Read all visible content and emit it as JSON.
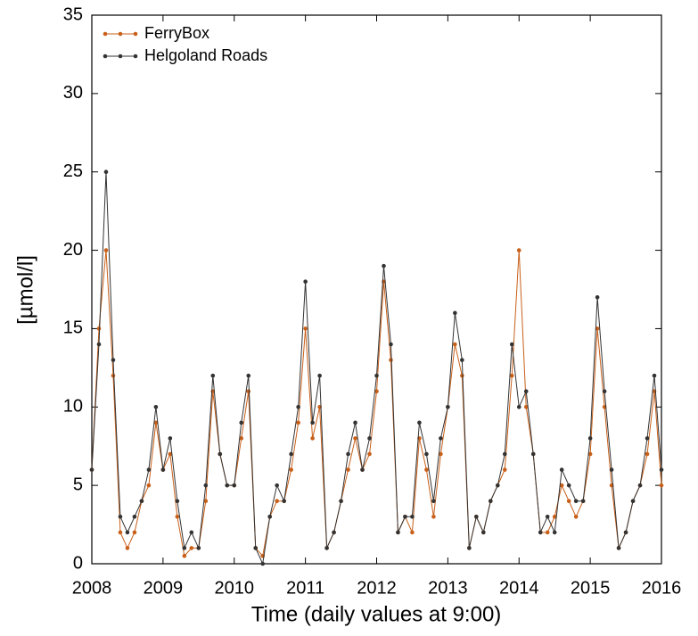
{
  "chart_data": {
    "type": "line",
    "y_label": "[µmol/l]",
    "x_label": "Time (daily values at 9:00)",
    "x": [
      2008.0,
      2008.1,
      2008.2,
      2008.3,
      2008.4,
      2008.5,
      2008.6,
      2008.7,
      2008.8,
      2008.9,
      2009.0,
      2009.1,
      2009.2,
      2009.3,
      2009.4,
      2009.5,
      2009.6,
      2009.7,
      2009.8,
      2009.9,
      2010.0,
      2010.1,
      2010.2,
      2010.3,
      2010.4,
      2010.5,
      2010.6,
      2010.7,
      2010.8,
      2010.9,
      2011.0,
      2011.1,
      2011.2,
      2011.3,
      2011.4,
      2011.5,
      2011.6,
      2011.7,
      2011.8,
      2011.9,
      2012.0,
      2012.1,
      2012.2,
      2012.3,
      2012.4,
      2012.5,
      2012.6,
      2012.7,
      2012.8,
      2012.9,
      2013.0,
      2013.1,
      2013.2,
      2013.3,
      2013.4,
      2013.5,
      2013.6,
      2013.7,
      2013.8,
      2013.9,
      2014.0,
      2014.1,
      2014.2,
      2014.3,
      2014.4,
      2014.5,
      2014.6,
      2014.7,
      2014.8,
      2014.9,
      2015.0,
      2015.1,
      2015.2,
      2015.3,
      2015.4,
      2015.5,
      2015.6,
      2015.7,
      2015.8,
      2015.9,
      2016.0
    ],
    "series": [
      {
        "name": "FerryBox",
        "color": "#c8601a",
        "values": [
          6,
          15,
          20,
          12,
          2,
          1,
          2,
          4,
          5,
          9,
          6,
          7,
          3,
          0.5,
          1,
          1,
          4,
          11,
          7,
          5,
          5,
          8,
          11,
          1,
          0.5,
          3,
          4,
          4,
          6,
          9,
          15,
          8,
          10,
          1,
          2,
          4,
          6,
          8,
          6,
          7,
          11,
          18,
          13,
          2,
          3,
          2,
          8,
          6,
          3,
          7,
          10,
          14,
          12,
          1,
          3,
          2,
          4,
          5,
          6,
          12,
          20,
          10,
          7,
          2,
          2,
          3,
          5,
          4,
          3,
          4,
          7,
          15,
          10,
          5,
          1,
          2,
          4,
          5,
          7,
          11,
          5
        ]
      },
      {
        "name": "Helgoland Roads",
        "color": "#333333",
        "values": [
          6,
          14,
          25,
          13,
          3,
          2,
          3,
          4,
          6,
          10,
          6,
          8,
          4,
          1,
          2,
          1,
          5,
          12,
          7,
          5,
          5,
          9,
          12,
          1,
          0,
          3,
          5,
          4,
          7,
          10,
          18,
          9,
          12,
          1,
          2,
          4,
          7,
          9,
          6,
          8,
          12,
          19,
          14,
          2,
          3,
          3,
          9,
          7,
          4,
          8,
          10,
          16,
          13,
          1,
          3,
          2,
          4,
          5,
          7,
          14,
          10,
          11,
          7,
          2,
          3,
          2,
          6,
          5,
          4,
          4,
          8,
          17,
          11,
          6,
          1,
          2,
          4,
          5,
          8,
          12,
          6
        ]
      }
    ],
    "xlim": [
      2008,
      2016
    ],
    "xticks": [
      2008,
      2009,
      2010,
      2011,
      2012,
      2013,
      2014,
      2015,
      2016
    ],
    "ylim": [
      0,
      35
    ],
    "yticks": [
      0,
      5,
      10,
      15,
      20,
      25,
      30,
      35
    ],
    "legend": "upper left"
  }
}
